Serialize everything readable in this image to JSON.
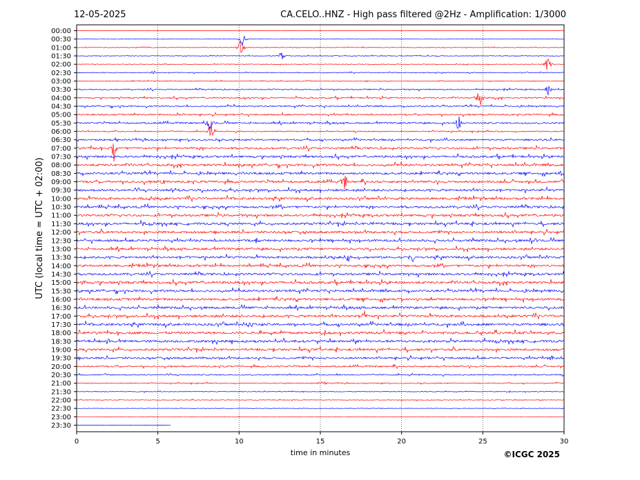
{
  "header": {
    "date": "12-05-2025",
    "title": "CA.CELO..HNZ - High pass filtered @2Hz - Amplification: 1/3000"
  },
  "footer": {
    "copyright": "©ICGC 2025"
  },
  "chart_data": {
    "type": "line",
    "title": "CA.CELO..HNZ - High pass filtered @2Hz - Amplification: 1/3000",
    "xlabel": "time in minutes",
    "ylabel": "UTC (local time = UTC + 02:00)",
    "xlim": [
      0,
      30
    ],
    "xticks": [
      0,
      5,
      10,
      15,
      20,
      25,
      30
    ],
    "grid": "vertical dotted lines at x ticks",
    "rows": [
      "00:00",
      "00:30",
      "01:00",
      "01:30",
      "02:00",
      "02:30",
      "03:00",
      "03:30",
      "04:00",
      "04:30",
      "05:00",
      "05:30",
      "06:00",
      "06:30",
      "07:00",
      "07:30",
      "08:00",
      "08:30",
      "09:00",
      "09:30",
      "10:00",
      "10:30",
      "11:00",
      "11:30",
      "12:00",
      "12:30",
      "13:00",
      "13:30",
      "14:00",
      "14:30",
      "15:00",
      "15:30",
      "16:00",
      "16:30",
      "17:00",
      "17:30",
      "18:00",
      "18:30",
      "19:00",
      "19:30",
      "20:00",
      "20:30",
      "21:00",
      "21:30",
      "22:00",
      "22:30",
      "23:00",
      "23:30"
    ],
    "series_colors": {
      "full_hour": "#ff0000",
      "half_hour": "#0000ff"
    },
    "row_noise": [
      0.2,
      0.4,
      0.8,
      0.9,
      0.8,
      1.0,
      0.9,
      1.5,
      1.8,
      1.8,
      2.0,
      2.2,
      1.5,
      2.2,
      2.8,
      2.8,
      3.0,
      3.0,
      3.0,
      3.0,
      3.0,
      3.0,
      3.0,
      3.0,
      3.0,
      3.0,
      3.0,
      3.0,
      3.0,
      3.0,
      3.2,
      3.0,
      3.2,
      3.0,
      3.2,
      3.2,
      3.2,
      3.2,
      3.0,
      2.6,
      2.0,
      1.6,
      1.2,
      0.9,
      0.8,
      0.5,
      0.3,
      0.3
    ],
    "traces_end_minutes": {
      "23:30": 5.8
    },
    "events": [
      {
        "row": "01:00",
        "minute": 10.1,
        "amplitude": 22
      },
      {
        "row": "00:30",
        "minute": 10.2,
        "amplitude": 14
      },
      {
        "row": "01:30",
        "minute": 12.6,
        "amplitude": 9
      },
      {
        "row": "02:30",
        "minute": 4.7,
        "amplitude": 7
      },
      {
        "row": "02:00",
        "minute": 29.0,
        "amplitude": 16
      },
      {
        "row": "03:30",
        "minute": 29.0,
        "amplitude": 14
      },
      {
        "row": "04:00",
        "minute": 24.8,
        "amplitude": 20
      },
      {
        "row": "05:00",
        "minute": 6.2,
        "amplitude": 8
      },
      {
        "row": "05:30",
        "minute": 8.2,
        "amplitude": 22
      },
      {
        "row": "05:30",
        "minute": 23.5,
        "amplitude": 14
      },
      {
        "row": "06:00",
        "minute": 8.3,
        "amplitude": 18
      },
      {
        "row": "07:00",
        "minute": 2.3,
        "amplitude": 20
      },
      {
        "row": "09:00",
        "minute": 5.3,
        "amplitude": 8
      },
      {
        "row": "09:00",
        "minute": 16.5,
        "amplitude": 14
      },
      {
        "row": "08:30",
        "minute": 29.9,
        "amplitude": 12
      },
      {
        "row": "09:30",
        "minute": 6.0,
        "amplitude": 7
      },
      {
        "row": "10:00",
        "minute": 4.6,
        "amplitude": 8
      },
      {
        "row": "11:30",
        "minute": 4.0,
        "amplitude": 8
      },
      {
        "row": "11:30",
        "minute": 18.2,
        "amplitude": 7
      },
      {
        "row": "12:30",
        "minute": 11.1,
        "amplitude": 7
      },
      {
        "row": "12:30",
        "minute": 28.2,
        "amplitude": 6
      },
      {
        "row": "13:30",
        "minute": 16.7,
        "amplitude": 7
      },
      {
        "row": "13:30",
        "minute": 20.7,
        "amplitude": 8
      },
      {
        "row": "15:00",
        "minute": 0.4,
        "amplitude": 7
      },
      {
        "row": "17:00",
        "minute": 17.7,
        "amplitude": 8
      },
      {
        "row": "17:30",
        "minute": 10.7,
        "amplitude": 7
      },
      {
        "row": "19:30",
        "minute": 29.3,
        "amplitude": 6
      },
      {
        "row": "21:00",
        "minute": 15.2,
        "amplitude": 6
      },
      {
        "row": "23:30",
        "minute": 5.9,
        "amplitude": 3
      }
    ]
  }
}
